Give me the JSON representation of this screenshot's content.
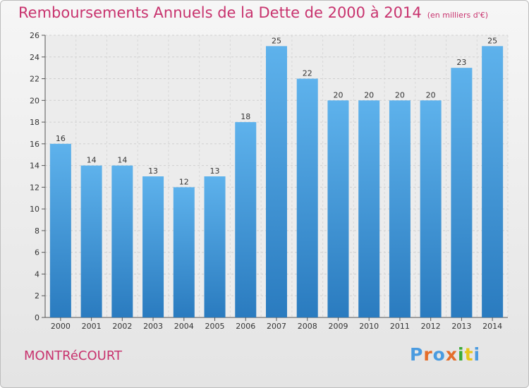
{
  "title": "Remboursements Annuels de la Dette de 2000 à 2014",
  "unit": "(en milliers d'€)",
  "commune": "MONTRéCOURT",
  "logo": {
    "text": "Proxiti",
    "colors": [
      "#4a9be0",
      "#e46d2a",
      "#4a9be0",
      "#e46d2a",
      "#3aaa35",
      "#e7c61a",
      "#4a9be0"
    ]
  },
  "chart_data": {
    "type": "bar",
    "categories": [
      "2000",
      "2001",
      "2002",
      "2003",
      "2004",
      "2005",
      "2006",
      "2007",
      "2008",
      "2009",
      "2010",
      "2011",
      "2012",
      "2013",
      "2014"
    ],
    "values": [
      16,
      14,
      14,
      13,
      12,
      13,
      18,
      25,
      22,
      20,
      20,
      20,
      20,
      23,
      25
    ],
    "value_labels": [
      "16",
      "14",
      "14",
      "13",
      "12",
      "13",
      "18",
      "25",
      "22",
      "20",
      "20",
      "20",
      "20",
      "23",
      "25"
    ],
    "ylim": [
      0,
      26
    ],
    "yticks": [
      0,
      2,
      4,
      6,
      8,
      10,
      12,
      14,
      16,
      18,
      20,
      22,
      24,
      26
    ],
    "ytick_labels": [
      "0",
      "2",
      "4",
      "6",
      "8",
      "10",
      "12",
      "14",
      "16",
      "18",
      "20",
      "22",
      "24",
      "26"
    ],
    "grid": true,
    "bar_color": "#3d8fd4"
  }
}
